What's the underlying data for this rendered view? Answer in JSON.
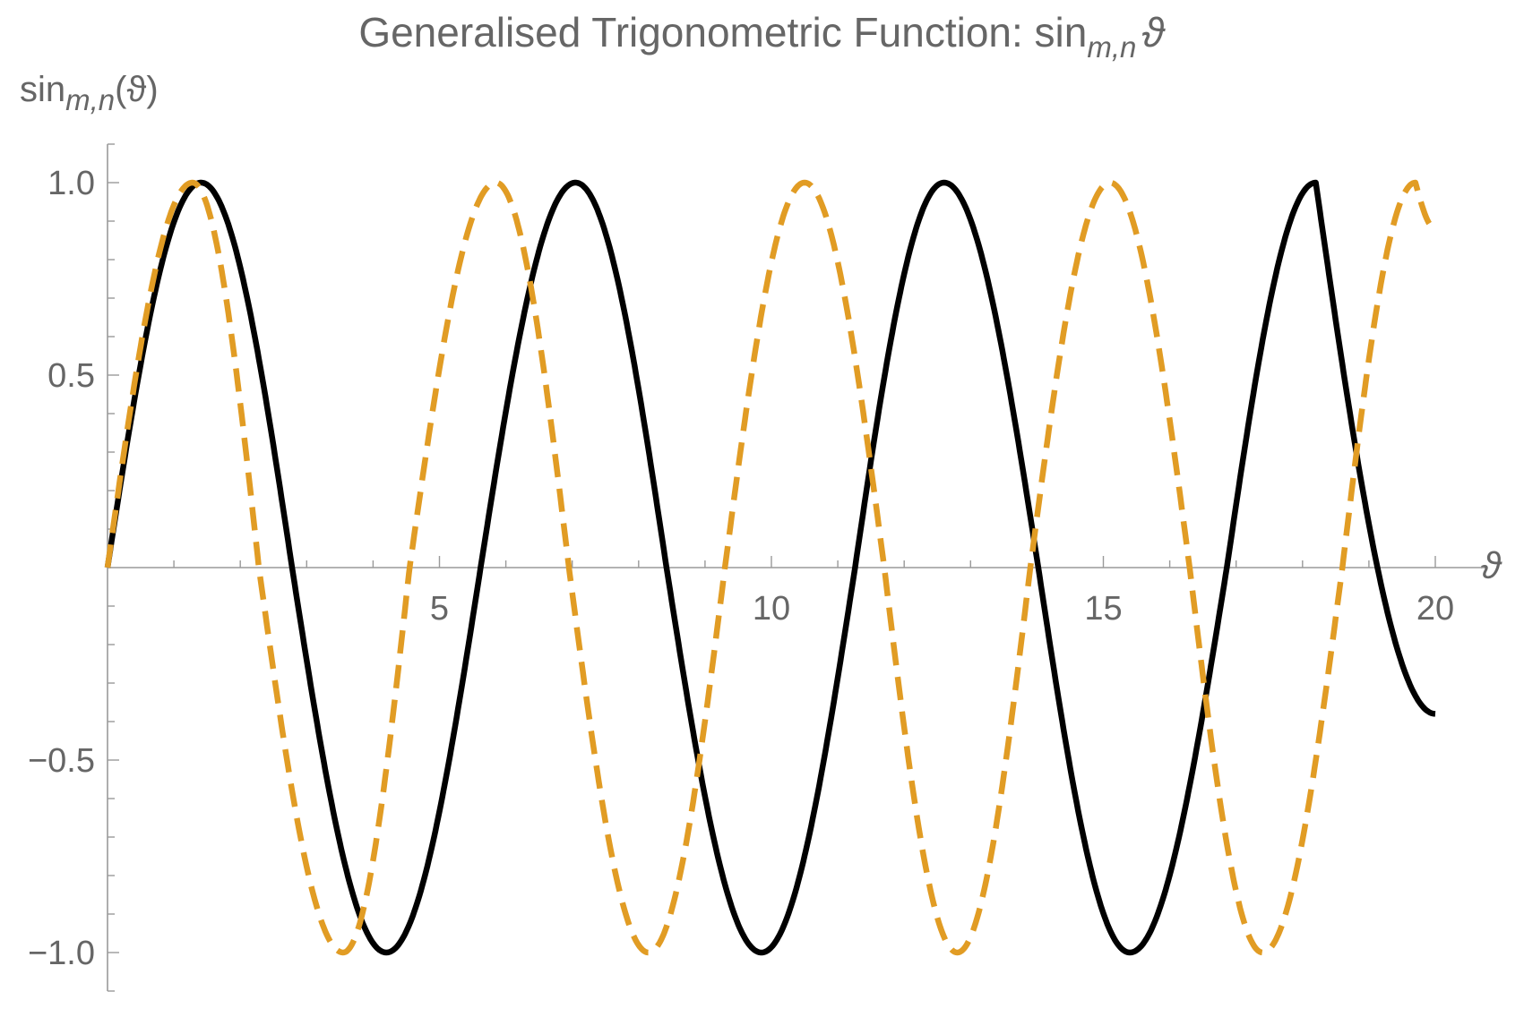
{
  "chart_data": {
    "type": "line",
    "title": {
      "main": "Generalised Trigonometric Function: sin",
      "sub": "m,n",
      "tail": "ϑ"
    },
    "xlabel": "ϑ",
    "ylabel": {
      "main": "sin",
      "sub": "m,n",
      "tail": "(ϑ)"
    },
    "xlim": [
      0,
      20.5
    ],
    "ylim": [
      -1.1,
      1.1
    ],
    "x_ticks": [
      {
        "value": 5,
        "label": "5"
      },
      {
        "value": 10,
        "label": "10"
      },
      {
        "value": 15,
        "label": "15"
      },
      {
        "value": 20,
        "label": "20"
      }
    ],
    "y_ticks": [
      {
        "value": 1.0,
        "label": "1.0"
      },
      {
        "value": 0.5,
        "label": "0.5"
      },
      {
        "value": -0.5,
        "label": "−0.5"
      },
      {
        "value": -1.0,
        "label": "−1.0"
      }
    ],
    "grid": false,
    "series": [
      {
        "color": "#000000",
        "style": "solid",
        "x_range": [
          0,
          20
        ],
        "peaks_x": [
          1.41,
          7.05,
          12.6,
          18.2
        ],
        "troughs_x": [
          4.2,
          9.85,
          15.4
        ],
        "zeros_x": [
          0,
          2.78,
          5.62,
          8.42,
          11.26,
          14.02,
          16.86
        ],
        "end": [
          20,
          -0.38
        ]
      },
      {
        "color": "#E19C24",
        "style": "dashed",
        "x_range": [
          0,
          20
        ],
        "peaks_x": [
          1.28,
          5.85,
          10.5,
          15.1,
          19.7
        ],
        "troughs_x": [
          3.55,
          8.15,
          12.8,
          17.4
        ],
        "zeros_x": [
          0,
          2.28,
          4.55,
          6.95,
          9.3,
          11.7,
          13.9,
          16.3,
          18.6
        ],
        "end": [
          20,
          0.88
        ]
      }
    ]
  }
}
